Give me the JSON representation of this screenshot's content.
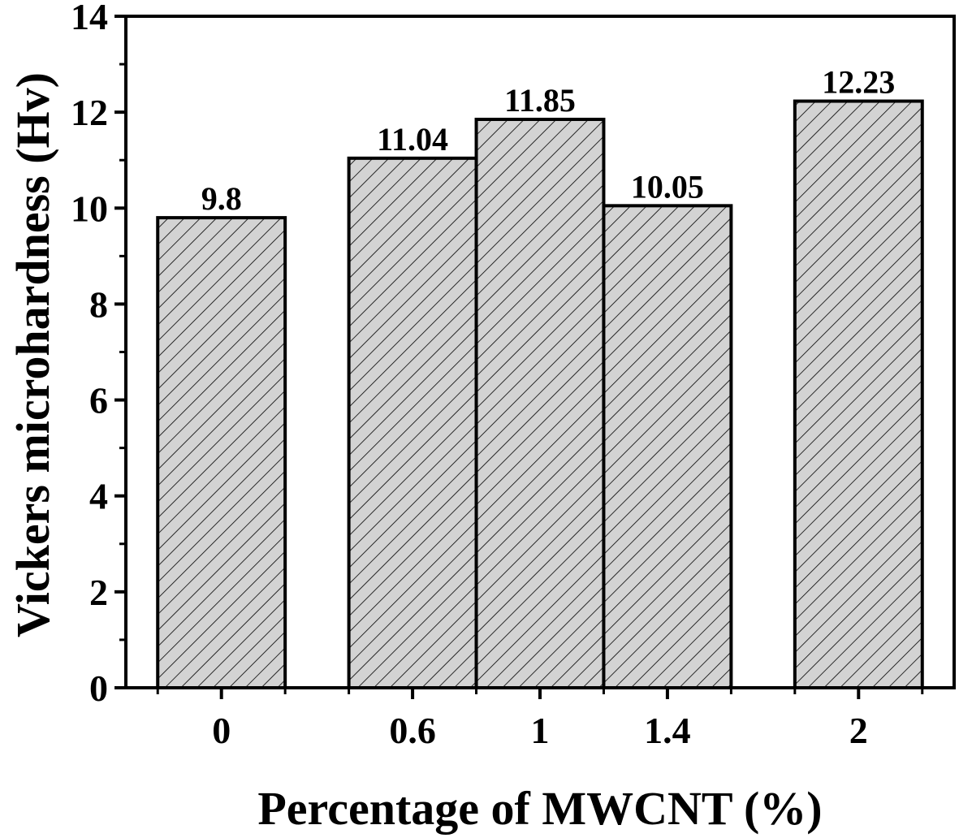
{
  "chart_data": {
    "type": "bar",
    "title": "",
    "xlabel": "Percentage of MWCNT (%)",
    "ylabel": "Vickers microhardness (Hv)",
    "x": [
      0,
      0.6,
      1,
      1.4,
      2
    ],
    "categories": [
      "0",
      "0.6",
      "1",
      "1.4",
      "2"
    ],
    "values": [
      9.8,
      11.04,
      11.85,
      10.05,
      12.23
    ],
    "data_labels": [
      "9.8",
      "11.04",
      "11.85",
      "10.05",
      "12.23"
    ],
    "xlim": [
      -0.3,
      2.3
    ],
    "ylim": [
      0,
      14
    ],
    "yticks": [
      0,
      2,
      4,
      6,
      8,
      10,
      12,
      14
    ],
    "xticks": [
      0,
      0.6,
      1,
      1.4,
      2
    ],
    "bar_width": 0.4,
    "grid": false,
    "bar_fill": "#d3d3d3",
    "bar_hatch": "diagonal",
    "bar_edge": "#000000"
  }
}
